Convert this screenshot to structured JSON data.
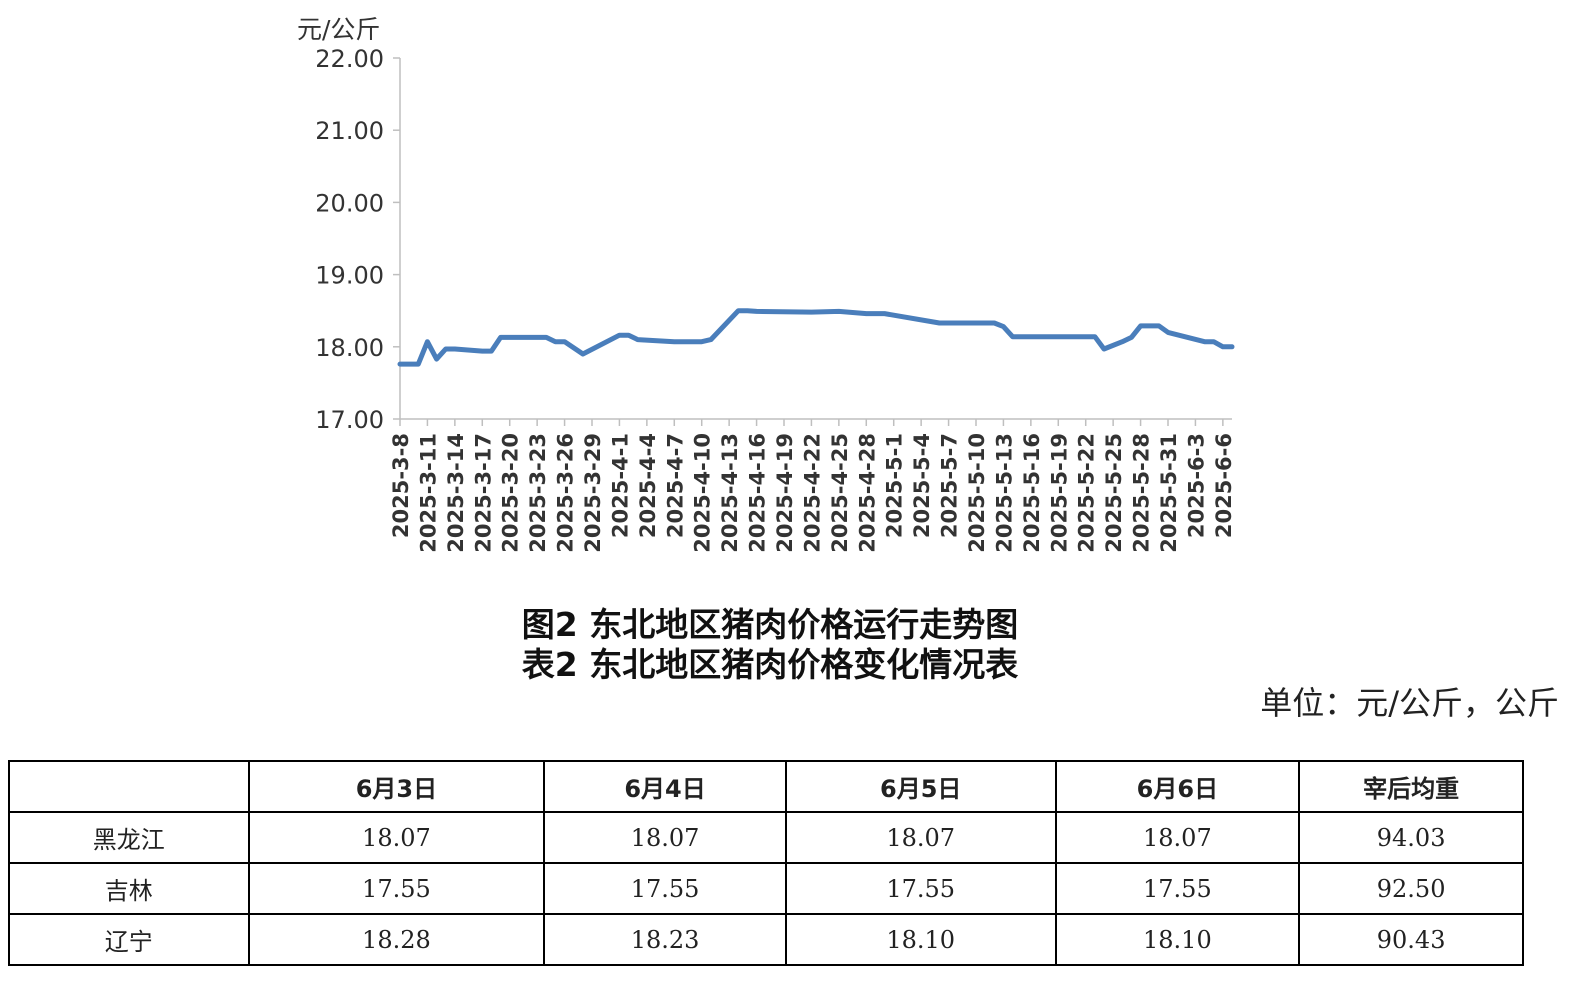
{
  "chart_data": {
    "type": "line",
    "title": "",
    "xlabel": "",
    "ylabel": "元/公斤",
    "ylim": [
      17,
      22
    ],
    "yticks": [
      "17.00",
      "18.00",
      "19.00",
      "20.00",
      "21.00",
      "22.00"
    ],
    "grid": false,
    "xticks": [
      "2025-3-8",
      "2025-3-11",
      "2025-3-14",
      "2025-3-17",
      "2025-3-20",
      "2025-3-23",
      "2025-3-26",
      "2025-3-29",
      "2025-4-1",
      "2025-4-4",
      "2025-4-7",
      "2025-4-10",
      "2025-4-13",
      "2025-4-16",
      "2025-4-19",
      "2025-4-22",
      "2025-4-25",
      "2025-4-28",
      "2025-5-1",
      "2025-5-4",
      "2025-5-7",
      "2025-5-10",
      "2025-5-13",
      "2025-5-16",
      "2025-5-19",
      "2025-5-22",
      "2025-5-25",
      "2025-5-28",
      "2025-5-31",
      "2025-6-3",
      "2025-6-6"
    ],
    "series": [
      {
        "color": "#4a7ebb",
        "points": [
          [
            "2025-3-8",
            17.76
          ],
          [
            "2025-3-10",
            17.76
          ],
          [
            "2025-3-11",
            18.07
          ],
          [
            "2025-3-12",
            17.83
          ],
          [
            "2025-3-13",
            17.97
          ],
          [
            "2025-3-14",
            17.97
          ],
          [
            "2025-3-17",
            17.94
          ],
          [
            "2025-3-18",
            17.94
          ],
          [
            "2025-3-19",
            18.13
          ],
          [
            "2025-3-23",
            18.13
          ],
          [
            "2025-3-24",
            18.13
          ],
          [
            "2025-3-25",
            18.07
          ],
          [
            "2025-3-26",
            18.07
          ],
          [
            "2025-3-28",
            17.9
          ],
          [
            "2025-4-1",
            18.16
          ],
          [
            "2025-4-2",
            18.16
          ],
          [
            "2025-4-3",
            18.1
          ],
          [
            "2025-4-7",
            18.07
          ],
          [
            "2025-4-10",
            18.07
          ],
          [
            "2025-4-11",
            18.1
          ],
          [
            "2025-4-14",
            18.5
          ],
          [
            "2025-4-15",
            18.5
          ],
          [
            "2025-4-16",
            18.49
          ],
          [
            "2025-4-22",
            18.48
          ],
          [
            "2025-4-25",
            18.49
          ],
          [
            "2025-4-28",
            18.46
          ],
          [
            "2025-4-30",
            18.46
          ],
          [
            "2025-5-6",
            18.33
          ],
          [
            "2025-5-12",
            18.33
          ],
          [
            "2025-5-13",
            18.28
          ],
          [
            "2025-5-14",
            18.14
          ],
          [
            "2025-5-22",
            18.14
          ],
          [
            "2025-5-23",
            18.14
          ],
          [
            "2025-5-24",
            17.97
          ],
          [
            "2025-5-26",
            18.07
          ],
          [
            "2025-5-27",
            18.13
          ],
          [
            "2025-5-28",
            18.29
          ],
          [
            "2025-5-30",
            18.29
          ],
          [
            "2025-5-31",
            18.2
          ],
          [
            "2025-6-4",
            18.07
          ],
          [
            "2025-6-5",
            18.07
          ],
          [
            "2025-6-6",
            18.0
          ],
          [
            "2025-6-7",
            18.0
          ]
        ]
      }
    ]
  },
  "captions": {
    "figure": "图2  东北地区猪肉价格运行走势图",
    "table": "表2  东北地区猪肉价格变化情况表",
    "unit": "单位：元/公斤，公斤"
  },
  "table": {
    "headers": [
      "",
      "6月3日",
      "6月4日",
      "6月5日",
      "6月6日",
      "宰后均重"
    ],
    "rows": [
      [
        "黑龙江",
        "18.07",
        "18.07",
        "18.07",
        "18.07",
        "94.03"
      ],
      [
        "吉林",
        "17.55",
        "17.55",
        "17.55",
        "17.55",
        "92.50"
      ],
      [
        "辽宁",
        "18.28",
        "18.23",
        "18.10",
        "18.10",
        "90.43"
      ]
    ]
  }
}
